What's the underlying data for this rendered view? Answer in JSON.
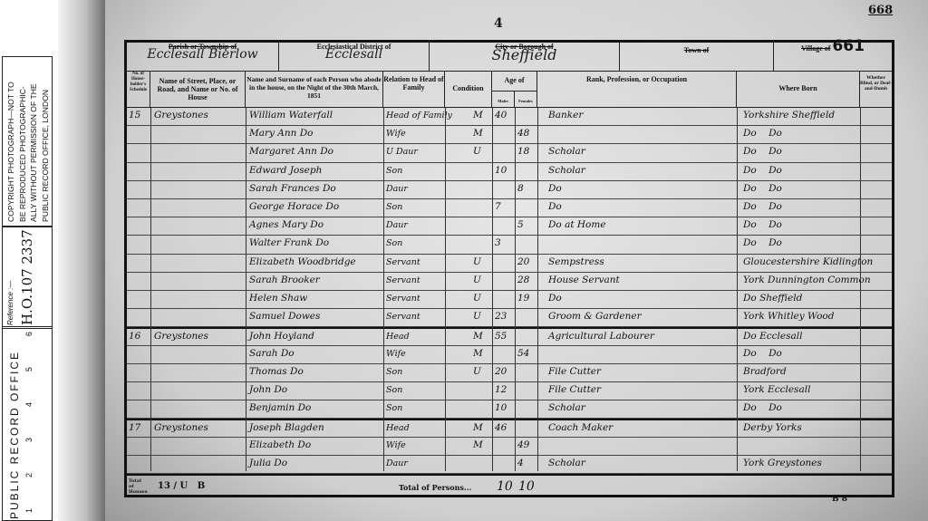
{
  "stamp": {
    "office": "PUBLIC RECORD OFFICE",
    "scale_numbers": [
      "1",
      "2",
      "3",
      "4",
      "5",
      "6"
    ],
    "reference_label": "Reference :—",
    "reference": "H.O.107 2337",
    "copyright": [
      "COPYRIGHT PHOTOGRAPH—NOT TO",
      "BE REPRODUCED PHOTOGRAPHIC-",
      "ALLY WITHOUT PERMISSION OF THE",
      "PUBLIC RECORD OFFICE, LONDON"
    ]
  },
  "page": {
    "top_number": "4",
    "folio": "668",
    "page_number": "661"
  },
  "header": {
    "parish_label": "Parish or Township of",
    "parish": "Ecclesall Bierlow",
    "district_label": "Ecclesiastical District of",
    "district": "Ecclesall",
    "city_label": "City or Borough of",
    "city": "Sheffield",
    "town_label": "Town of",
    "village_label": "Village of"
  },
  "columns": {
    "schedule": "No. of House-holder's Schedule",
    "street": "Name of Street, Place, or Road, and Name or No. of House",
    "name": "Name and Surname of each Person who abode in the house, on the Night of the 30th March, 1851",
    "relation": "Relation to Head of Family",
    "condition": "Condition",
    "age": "Age of",
    "males": "Males",
    "females": "Females",
    "occupation": "Rank, Profession, or Occupation",
    "born": "Where Born",
    "blind": "Whether Blind, or Deaf-and-Dumb"
  },
  "rows": [
    {
      "schedule": "15",
      "street": "Greystones",
      "name": "William Waterfall",
      "relation": "Head of Family",
      "condition": "M",
      "male": "40",
      "female": "",
      "occupation": "Banker",
      "born": "Yorkshire Sheffield"
    },
    {
      "schedule": "",
      "street": "",
      "name": "Mary Ann Do",
      "relation": "Wife",
      "condition": "M",
      "male": "",
      "female": "48",
      "occupation": "",
      "born": "Do    Do"
    },
    {
      "schedule": "",
      "street": "",
      "name": "Margaret Ann Do",
      "relation": "U Daur",
      "condition": "U",
      "male": "",
      "female": "18",
      "occupation": "Scholar",
      "born": "Do    Do"
    },
    {
      "schedule": "",
      "street": "",
      "name": "Edward Joseph",
      "relation": "Son",
      "condition": "",
      "male": "10",
      "female": "",
      "occupation": "Scholar",
      "born": "Do    Do"
    },
    {
      "schedule": "",
      "street": "",
      "name": "Sarah Frances Do",
      "relation": "Daur",
      "condition": "",
      "male": "",
      "female": "8",
      "occupation": "Do",
      "born": "Do    Do"
    },
    {
      "schedule": "",
      "street": "",
      "name": "George Horace Do",
      "relation": "Son",
      "condition": "",
      "male": "7",
      "female": "",
      "occupation": "Do",
      "born": "Do    Do"
    },
    {
      "schedule": "",
      "street": "",
      "name": "Agnes Mary Do",
      "relation": "Daur",
      "condition": "",
      "male": "",
      "female": "5",
      "occupation": "Do at Home",
      "born": "Do    Do"
    },
    {
      "schedule": "",
      "street": "",
      "name": "Walter Frank Do",
      "relation": "Son",
      "condition": "",
      "male": "3",
      "female": "",
      "occupation": "",
      "born": "Do    Do"
    },
    {
      "schedule": "",
      "street": "",
      "name": "Elizabeth Woodbridge",
      "relation": "Servant",
      "condition": "U",
      "male": "",
      "female": "20",
      "occupation": "Sempstress",
      "born": "Gloucestershire Kidlington"
    },
    {
      "schedule": "",
      "street": "",
      "name": "Sarah Brooker",
      "relation": "Servant",
      "condition": "U",
      "male": "",
      "female": "28",
      "occupation": "House Servant",
      "born": "York Dunnington Common"
    },
    {
      "schedule": "",
      "street": "",
      "name": "Helen Shaw",
      "relation": "Servant",
      "condition": "U",
      "male": "",
      "female": "19",
      "occupation": "Do",
      "born": "Do Sheffield"
    },
    {
      "schedule": "",
      "street": "",
      "name": "Samuel Dowes",
      "relation": "Servant",
      "condition": "U",
      "male": "23",
      "female": "",
      "occupation": "Groom & Gardener",
      "born": "York Whitley Wood"
    },
    {
      "schedule": "16",
      "street": "Greystones",
      "name": "John Hoyland",
      "relation": "Head",
      "condition": "M",
      "male": "55",
      "female": "",
      "occupation": "Agricultural Labourer",
      "born": "Do Ecclesall"
    },
    {
      "schedule": "",
      "street": "",
      "name": "Sarah Do",
      "relation": "Wife",
      "condition": "M",
      "male": "",
      "female": "54",
      "occupation": "",
      "born": "Do    Do"
    },
    {
      "schedule": "",
      "street": "",
      "name": "Thomas Do",
      "relation": "Son",
      "condition": "U",
      "male": "20",
      "female": "",
      "occupation": "File Cutter",
      "born": "Bradford"
    },
    {
      "schedule": "",
      "street": "",
      "name": "John Do",
      "relation": "Son",
      "condition": "",
      "male": "12",
      "female": "",
      "occupation": "File Cutter",
      "born": "York Ecclesall"
    },
    {
      "schedule": "",
      "street": "",
      "name": "Benjamin Do",
      "relation": "Son",
      "condition": "",
      "male": "10",
      "female": "",
      "occupation": "Scholar",
      "born": "Do    Do"
    },
    {
      "schedule": "17",
      "street": "Greystones",
      "name": "Joseph Blagden",
      "relation": "Head",
      "condition": "M",
      "male": "46",
      "female": "",
      "occupation": "Coach Maker",
      "born": "Derby Yorks"
    },
    {
      "schedule": "",
      "street": "",
      "name": "Elizabeth Do",
      "relation": "Wife",
      "condition": "M",
      "male": "",
      "female": "49",
      "occupation": "",
      "born": ""
    },
    {
      "schedule": "",
      "street": "",
      "name": "Julia Do",
      "relation": "Daur",
      "condition": "",
      "male": "",
      "female": "4",
      "occupation": "Scholar",
      "born": "York Greystones"
    }
  ],
  "totals": {
    "houses_label": "Total of Houses",
    "houses": "13 / U   B",
    "persons_label": "Total of Persons...",
    "males": "10",
    "females": "10",
    "footer_mark": "B 8"
  }
}
